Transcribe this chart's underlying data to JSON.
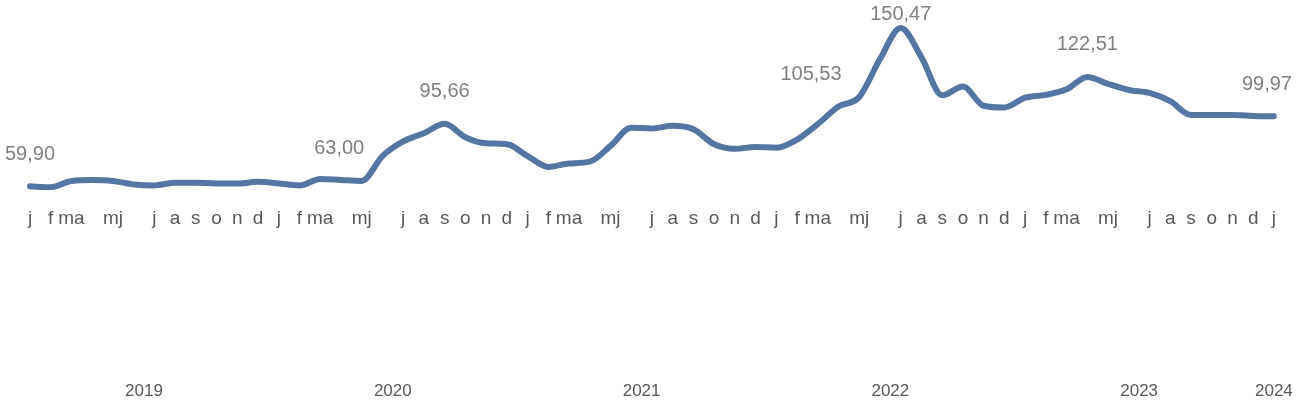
{
  "chart_data": {
    "type": "line",
    "categories": [
      "j",
      "f",
      "ma",
      null,
      "mj",
      null,
      "j",
      "a",
      "s",
      "o",
      "n",
      "d",
      "j",
      "f",
      "ma",
      null,
      "mj",
      null,
      "j",
      "a",
      "s",
      "o",
      "n",
      "d",
      "j",
      "f",
      "ma",
      null,
      "mj",
      null,
      "j",
      "a",
      "s",
      "o",
      "n",
      "d",
      "j",
      "f",
      "ma",
      null,
      "mj",
      null,
      "j",
      "a",
      "s",
      "o",
      "n",
      "d",
      "j",
      "f",
      "ma",
      null,
      "mj",
      null,
      "j",
      "a",
      "s",
      "o",
      "n",
      "d",
      "j"
    ],
    "series": [
      {
        "color": "#5576a3",
        "values": [
          59.9,
          59.4,
          63.0,
          63.5,
          63.0,
          61.0,
          60.4,
          62.0,
          62.0,
          61.5,
          61.5,
          62.5,
          61.5,
          60.4,
          64.1,
          63.5,
          63.0,
          77.2,
          85.6,
          90.3,
          95.66,
          88,
          84.5,
          84,
          77.2,
          71,
          73,
          74,
          83,
          93.4,
          93,
          94.5,
          92.5,
          84,
          81.4,
          82.4,
          82,
          86.6,
          95.5,
          105.53,
          111,
          132.7,
          150.47,
          133.7,
          112,
          117,
          106,
          105,
          110.6,
          112.2,
          115.4,
          122.51,
          118.5,
          115,
          113.3,
          108.6,
          100.7,
          100.7,
          100.7,
          100.2,
          99.97
        ],
        "value_labels": [
          "59,90",
          null,
          null,
          null,
          null,
          null,
          null,
          null,
          null,
          null,
          null,
          null,
          null,
          null,
          null,
          null,
          "63,00",
          null,
          null,
          null,
          "95,66",
          null,
          null,
          null,
          null,
          null,
          null,
          null,
          null,
          null,
          null,
          null,
          null,
          null,
          null,
          null,
          null,
          null,
          null,
          "105,53",
          null,
          null,
          "150,47",
          null,
          null,
          null,
          null,
          null,
          null,
          null,
          null,
          "122,51",
          null,
          null,
          null,
          null,
          null,
          null,
          null,
          null,
          "99,97"
        ]
      }
    ],
    "tick_labels": "x",
    "grid": false,
    "legend": false,
    "marker": "none",
    "line_style": "solid",
    "annotations": [
      "2019",
      "2020",
      "2021",
      "2022",
      "2023",
      "2024"
    ]
  }
}
